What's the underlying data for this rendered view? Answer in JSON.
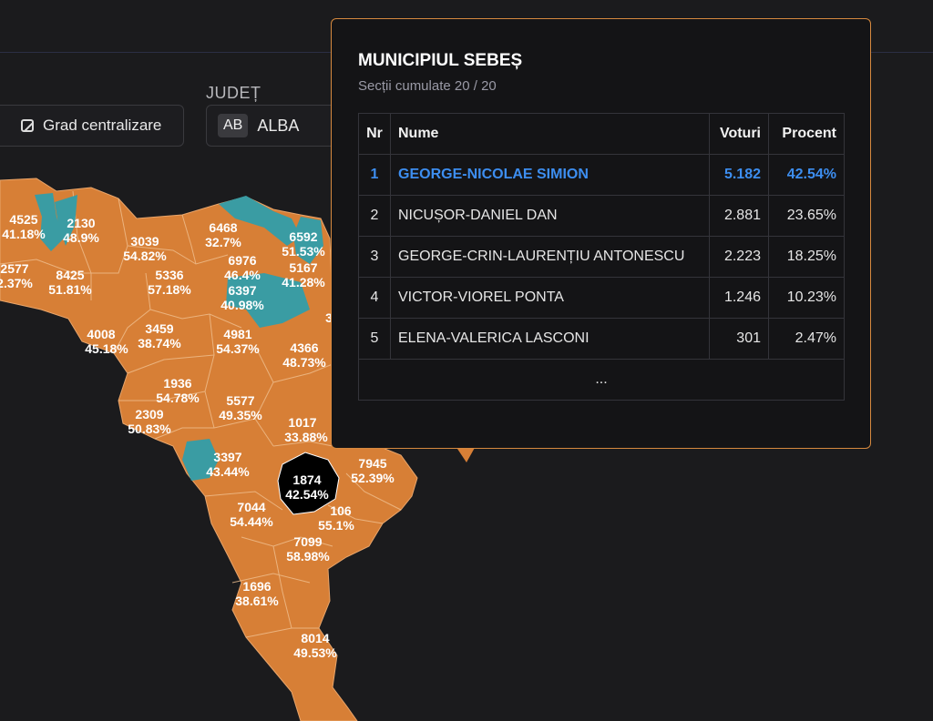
{
  "controls": {
    "grad_label": "Grad centralizare",
    "judet_label": "JUDEȚ",
    "judet_code": "AB",
    "judet_name": "ALBA"
  },
  "colors": {
    "orange": "#d77f36",
    "teal": "#3a9ca3",
    "selected": "#000000",
    "border": "#d6893f",
    "winner": "#3d8ef0"
  },
  "map_labels": [
    {
      "v": "4525",
      "p": "41.18%"
    },
    {
      "v": "2130",
      "p": "48.9%"
    },
    {
      "v": "6468",
      "p": "32.7%"
    },
    {
      "v": "6592",
      "p": "51.53%"
    },
    {
      "v": "3039",
      "p": "54.82%"
    },
    {
      "v": "2577",
      "p": "2.37%"
    },
    {
      "v": "8425",
      "p": "51.81%"
    },
    {
      "v": "5336",
      "p": "57.18%"
    },
    {
      "v": "6976",
      "p": "46.4%"
    },
    {
      "v": "5167",
      "p": "41.28%"
    },
    {
      "v": "6397",
      "p": "40.98%"
    },
    {
      "v": "4008",
      "p": "45.18%"
    },
    {
      "v": "3459",
      "p": "38.74%"
    },
    {
      "v": "4981",
      "p": "54.37%"
    },
    {
      "v": "4366",
      "p": "48.73%"
    },
    {
      "v": "1936",
      "p": "54.78%"
    },
    {
      "v": "5577",
      "p": "49.35%"
    },
    {
      "v": "2309",
      "p": "50.83%"
    },
    {
      "v": "1017",
      "p": "33.88%"
    },
    {
      "v": "3397",
      "p": "43.44%"
    },
    {
      "v": "7945",
      "p": "52.39%"
    },
    {
      "v": "1874",
      "p": "42.54%"
    },
    {
      "v": "7044",
      "p": "54.44%"
    },
    {
      "v": "106",
      "p": "55.1%"
    },
    {
      "v": "7099",
      "p": "58.98%"
    },
    {
      "v": "1696",
      "p": "38.61%"
    },
    {
      "v": "8014",
      "p": "49.53%"
    },
    {
      "v": "3",
      "p": ""
    }
  ],
  "tooltip": {
    "title": "MUNICIPIUL SEBEȘ",
    "subtitle": "Secții cumulate 20 / 20",
    "headers": {
      "nr": "Nr",
      "nume": "Nume",
      "voturi": "Voturi",
      "procent": "Procent"
    },
    "rows": [
      {
        "nr": "1",
        "nume": "GEORGE-NICOLAE SIMION",
        "voturi": "5.182",
        "procent": "42.54%"
      },
      {
        "nr": "2",
        "nume": "NICUȘOR-DANIEL DAN",
        "voturi": "2.881",
        "procent": "23.65%"
      },
      {
        "nr": "3",
        "nume": "GEORGE-CRIN-LAURENȚIU ANTONESCU",
        "voturi": "2.223",
        "procent": "18.25%"
      },
      {
        "nr": "4",
        "nume": "VICTOR-VIOREL PONTA",
        "voturi": "1.246",
        "procent": "10.23%"
      },
      {
        "nr": "5",
        "nume": "ELENA-VALERICA LASCONI",
        "voturi": "301",
        "procent": "2.47%"
      }
    ],
    "more": "..."
  }
}
